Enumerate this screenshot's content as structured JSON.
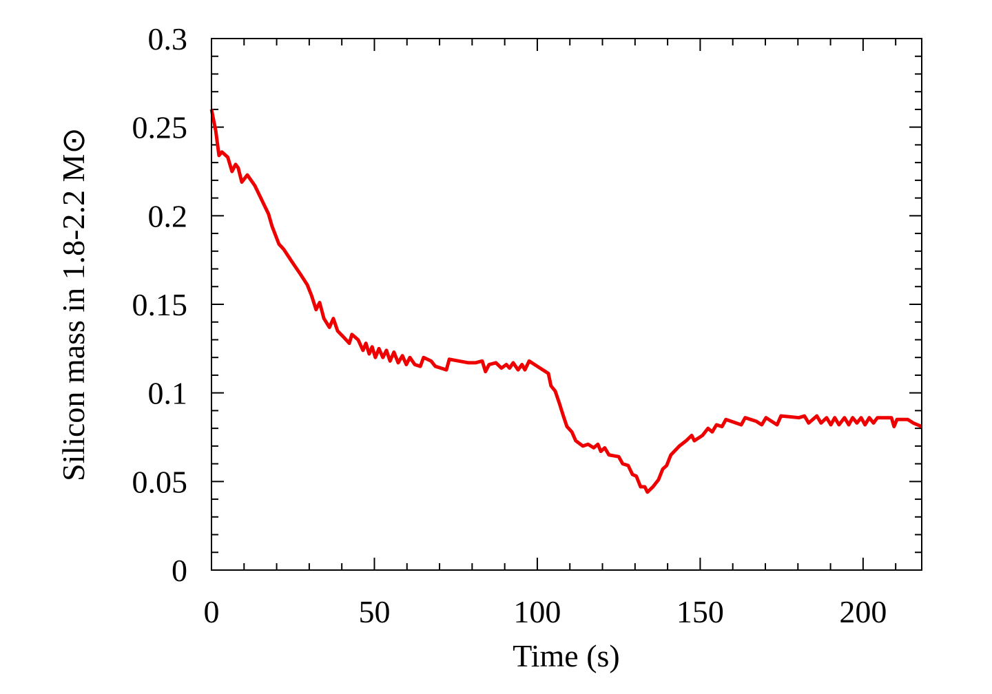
{
  "chart_data": {
    "type": "line",
    "x_label": "Time (s)",
    "y_label": "Silicon mass in 1.8-2.2 M⊙",
    "xlim": [
      0,
      218
    ],
    "xticks": [
      0,
      50,
      100,
      150,
      200
    ],
    "ylim": [
      0,
      0.3
    ],
    "yticks": [
      0,
      0.05,
      0.1,
      0.15,
      0.2,
      0.25,
      0.3
    ],
    "series": [
      {
        "color": "#ee0000",
        "x": [
          0,
          1.3,
          2.3,
          3.2,
          5,
          6.3,
          7.4,
          8.2,
          9.3,
          11,
          13.3,
          15.4,
          17.5,
          18.6,
          20.7,
          22.2,
          24.7,
          27.3,
          29.4,
          30.7,
          32.1,
          33.2,
          34.5,
          36.2,
          37.4,
          38.7,
          40.8,
          42.3,
          43.1,
          45,
          46.5,
          47.4,
          48.4,
          49.3,
          50.3,
          51.4,
          52.6,
          53.7,
          54.8,
          56,
          57.3,
          58.6,
          59.8,
          60.9,
          62.4,
          64.1,
          65.1,
          67.4,
          68.7,
          72.1,
          73,
          78.9,
          81,
          83.1,
          84.1,
          85.2,
          87.3,
          89,
          90.5,
          91.5,
          92.6,
          94.1,
          95.3,
          96.2,
          97.5,
          100,
          103.4,
          104.2,
          105.5,
          106.8,
          108,
          109.1,
          110.6,
          111.8,
          114,
          115.6,
          117.3,
          118.6,
          119.5,
          120.7,
          122,
          125,
          126.2,
          127.9,
          129.2,
          130.4,
          131.7,
          133,
          133.8,
          135.5,
          137.2,
          138.5,
          139.7,
          141,
          143.6,
          145.7,
          147.4,
          148.2,
          150.7,
          152.4,
          153.7,
          155,
          156.7,
          157.9,
          162.6,
          163.8,
          167.2,
          168.9,
          170.2,
          173.6,
          174.8,
          180.3,
          182,
          183.3,
          185.8,
          187.1,
          188.8,
          190.1,
          191.3,
          192.6,
          194.3,
          195.6,
          196.8,
          198.1,
          199.4,
          200.6,
          201.9,
          203.2,
          204.4,
          208.7,
          209.5,
          210.4,
          213.7,
          215.4,
          218
        ],
        "values": [
          0.26,
          0.248,
          0.234,
          0.236,
          0.233,
          0.225,
          0.229,
          0.227,
          0.219,
          0.223,
          0.217,
          0.209,
          0.201,
          0.194,
          0.184,
          0.181,
          0.174,
          0.167,
          0.161,
          0.155,
          0.147,
          0.151,
          0.142,
          0.137,
          0.142,
          0.135,
          0.131,
          0.128,
          0.133,
          0.13,
          0.124,
          0.128,
          0.122,
          0.126,
          0.12,
          0.125,
          0.12,
          0.124,
          0.118,
          0.123,
          0.117,
          0.121,
          0.116,
          0.12,
          0.116,
          0.115,
          0.12,
          0.118,
          0.115,
          0.113,
          0.119,
          0.117,
          0.117,
          0.118,
          0.112,
          0.116,
          0.117,
          0.114,
          0.116,
          0.114,
          0.117,
          0.113,
          0.116,
          0.113,
          0.118,
          0.115,
          0.111,
          0.104,
          0.101,
          0.094,
          0.087,
          0.081,
          0.078,
          0.073,
          0.07,
          0.071,
          0.069,
          0.071,
          0.067,
          0.069,
          0.065,
          0.064,
          0.06,
          0.059,
          0.054,
          0.053,
          0.047,
          0.047,
          0.044,
          0.047,
          0.051,
          0.057,
          0.059,
          0.065,
          0.07,
          0.073,
          0.076,
          0.073,
          0.076,
          0.08,
          0.078,
          0.082,
          0.081,
          0.085,
          0.082,
          0.086,
          0.084,
          0.082,
          0.086,
          0.082,
          0.087,
          0.086,
          0.087,
          0.083,
          0.087,
          0.083,
          0.086,
          0.082,
          0.086,
          0.082,
          0.086,
          0.082,
          0.086,
          0.083,
          0.086,
          0.082,
          0.086,
          0.083,
          0.086,
          0.086,
          0.081,
          0.085,
          0.085,
          0.083,
          0.081
        ]
      }
    ]
  }
}
